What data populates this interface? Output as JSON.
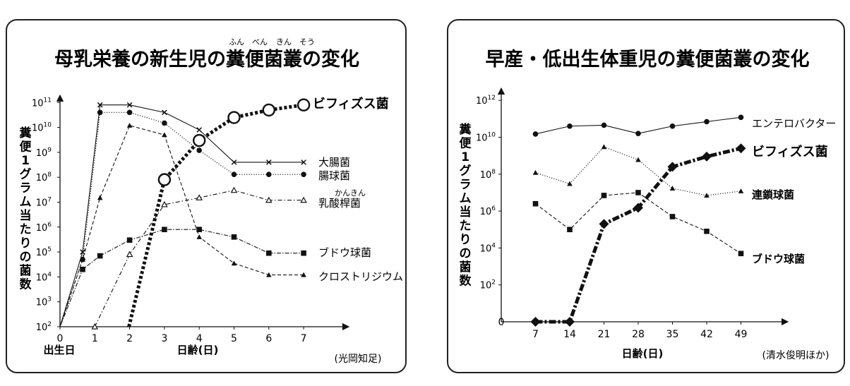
{
  "palette": {
    "ink": "#111111"
  },
  "chart_data": [
    {
      "type": "line",
      "title": "母乳栄養の新生児の糞便菌叢の変化",
      "title_ruby": [
        "ふん",
        "べん",
        "きん",
        "そう"
      ],
      "ylabel": "糞便1グラム当たりの菌数",
      "xlabel": "日齢(日)",
      "x_first_label": "出生日",
      "source": "(光岡知足)",
      "yscale": "log",
      "ylim": [
        100,
        300000000000
      ],
      "xlim": [
        0,
        8
      ],
      "y_tick_values": [
        100,
        1000,
        10000,
        100000,
        1000000,
        10000000,
        100000000,
        1000000000,
        10000000000,
        100000000000
      ],
      "y_tick_labels": [
        {
          "base": "10",
          "exp": "2"
        },
        {
          "base": "10",
          "exp": "3"
        },
        {
          "base": "10",
          "exp": "4"
        },
        {
          "base": "10",
          "exp": "5"
        },
        {
          "base": "10",
          "exp": "6"
        },
        {
          "base": "10",
          "exp": "7"
        },
        {
          "base": "10",
          "exp": "8"
        },
        {
          "base": "10",
          "exp": "9"
        },
        {
          "base": "10",
          "exp": "10"
        },
        {
          "base": "10",
          "exp": "11"
        }
      ],
      "x_ticks": [
        0,
        1,
        2,
        3,
        4,
        5,
        6,
        7
      ],
      "x_tick_labels": [
        "0",
        "1",
        "2",
        "3",
        "4",
        "5",
        "6",
        "7"
      ],
      "series": [
        {
          "name": "ビフィズス菌",
          "marker": "open-circle",
          "line": "bold-dotted",
          "emphasis": true,
          "ruby": "",
          "x": [
            1.98,
            3,
            4,
            5,
            6,
            7
          ],
          "y": [
            100,
            80000000,
            3000000000,
            25000000000,
            50000000000,
            80000000000
          ]
        },
        {
          "name": "大腸菌",
          "marker": "x",
          "line": "solid",
          "emphasis": false,
          "ruby": "",
          "x": [
            0,
            0.65,
            1.15,
            2,
            3,
            4,
            5,
            6,
            7
          ],
          "y": [
            100,
            100000,
            80000000000,
            80000000000,
            40000000000,
            8000000000,
            400000000,
            400000000,
            400000000
          ]
        },
        {
          "name": "腸球菌",
          "marker": "filled-circle",
          "line": "dotted",
          "emphasis": false,
          "ruby": "",
          "x": [
            0,
            0.65,
            1.15,
            2,
            3,
            4,
            5,
            6,
            7
          ],
          "y": [
            100,
            50000,
            40000000000,
            40000000000,
            15000000000,
            1200000000,
            130000000,
            130000000,
            130000000
          ]
        },
        {
          "name": "乳酸桿菌",
          "marker": "open-triangle",
          "line": "dash-dot",
          "emphasis": false,
          "ruby": "かんきん",
          "x": [
            1,
            2,
            3,
            4,
            5,
            6,
            7
          ],
          "y": [
            100,
            80000,
            8000000,
            15000000,
            30000000,
            12000000,
            12000000
          ]
        },
        {
          "name": "ブドウ球菌",
          "marker": "filled-square",
          "line": "dotted-dash",
          "emphasis": false,
          "ruby": "",
          "x": [
            0,
            0.65,
            1.15,
            2,
            3,
            4,
            5,
            6,
            7
          ],
          "y": [
            100,
            20000,
            70000,
            300000,
            800000,
            800000,
            400000,
            90000,
            90000
          ]
        },
        {
          "name": "クロストリジウム",
          "marker": "filled-triangle",
          "line": "dashed",
          "emphasis": false,
          "ruby": "",
          "x": [
            0,
            0.65,
            1.15,
            2,
            3,
            4,
            5,
            6,
            7
          ],
          "y": [
            100,
            50000,
            15000000,
            12000000000,
            5000000000,
            400000,
            35000,
            12000,
            12000
          ]
        }
      ]
    },
    {
      "type": "line",
      "title": "早産・低出生体重児の糞便菌叢の変化",
      "ylabel": "糞便1グラム当たりの菌数",
      "xlabel": "日齢(日)",
      "origin_label": "0",
      "source": "(清水俊明ほか)",
      "yscale": "log",
      "ylim": [
        1,
        10000000000000
      ],
      "xlim": [
        0,
        56
      ],
      "y_tick_values": [
        100,
        10000,
        1000000,
        100000000,
        10000000000,
        1000000000000
      ],
      "y_tick_labels": [
        {
          "base": "10",
          "exp": "2"
        },
        {
          "base": "10",
          "exp": "4"
        },
        {
          "base": "10",
          "exp": "6"
        },
        {
          "base": "10",
          "exp": "8"
        },
        {
          "base": "10",
          "exp": "10"
        },
        {
          "base": "10",
          "exp": "12"
        }
      ],
      "x_ticks": [
        7,
        14,
        21,
        28,
        35,
        42,
        49
      ],
      "x_tick_labels": [
        "7",
        "14",
        "21",
        "28",
        "35",
        "42",
        "49"
      ],
      "series": [
        {
          "name": "エンテロバクター",
          "marker": "filled-circle",
          "line": "solid",
          "emphasis": false,
          "x": [
            7,
            14,
            21,
            28,
            35,
            42,
            49
          ],
          "y": [
            15000000000,
            40000000000,
            45000000000,
            16000000000,
            40000000000,
            70000000000,
            120000000000
          ]
        },
        {
          "name": "ビフィズス菌",
          "marker": "filled-diamond",
          "line": "bold-dash-dot",
          "emphasis": true,
          "x": [
            7,
            14,
            21,
            28,
            35,
            42,
            49
          ],
          "y": [
            1,
            1,
            200000,
            1500000,
            250000000,
            900000000,
            2500000000
          ]
        },
        {
          "name": "連鎖球菌",
          "marker": "filled-triangle",
          "line": "dotted",
          "emphasis": false,
          "x": [
            7,
            14,
            21,
            28,
            35,
            42,
            49
          ],
          "y": [
            120000000,
            30000000,
            3000000000,
            600000000,
            17000000,
            7000000,
            12000000
          ]
        },
        {
          "name": "ブドウ球菌",
          "marker": "filled-square",
          "line": "dashed",
          "emphasis": false,
          "x": [
            7,
            14,
            21,
            28,
            35,
            42,
            49
          ],
          "y": [
            2500000,
            100000,
            7000000,
            10000000,
            500000,
            80000,
            5000
          ]
        }
      ]
    }
  ]
}
